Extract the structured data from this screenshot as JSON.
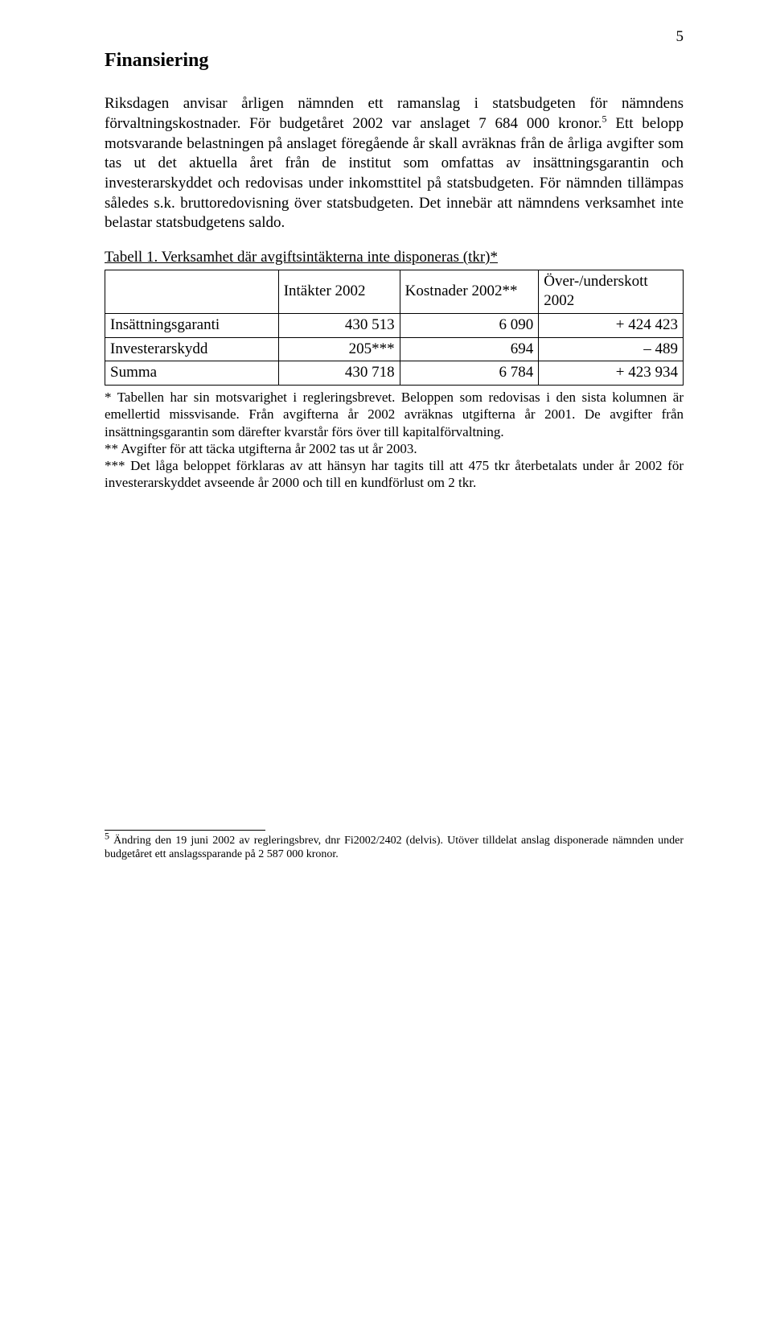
{
  "page_number": "5",
  "section_title": "Finansiering",
  "paragraph1_a": "Riksdagen anvisar årligen nämnden ett ramanslag i statsbudgeten för nämndens förvaltningskostnader. För budgetåret 2002 var anslaget 7 684 000 kronor.",
  "paragraph1_fn": "5",
  "paragraph1_b": " Ett belopp motsvarande belastningen på anslaget föregående år skall avräknas från de årliga avgifter som tas ut det aktuella året från de institut som omfattas av insättningsgarantin och investerarskyddet och redovisas under inkomsttitel på statsbudgeten. För nämnden tillämpas således s.k. bruttoredovisning över statsbudgeten. Det innebär att nämndens verksamhet inte belastar statsbudgetens saldo.",
  "table": {
    "caption": "Tabell 1. Verksamhet där avgiftsintäkterna inte disponeras (tkr)*",
    "columns": [
      "",
      "Intäkter 2002",
      "Kostnader 2002**",
      "Över-/underskott 2002"
    ],
    "rows": [
      [
        "Insättningsgaranti",
        "430 513",
        "6 090",
        "+ 424 423"
      ],
      [
        "Investerarskydd",
        "205***",
        "694",
        "– 489"
      ],
      [
        "Summa",
        "430 718",
        "6 784",
        "+ 423 934"
      ]
    ],
    "col_widths": [
      "30%",
      "21%",
      "24%",
      "25%"
    ]
  },
  "notes": {
    "n1": "* Tabellen har sin motsvarighet i regleringsbrevet. Beloppen som redovisas i den sista kolumnen är emellertid missvisande. Från avgifterna år 2002 avräknas utgifterna år 2001. De avgifter från insättningsgarantin som därefter kvarstår förs över till kapitalförvaltning.",
    "n2": "** Avgifter för att täcka utgifterna år 2002 tas ut år 2003.",
    "n3": "*** Det låga beloppet förklaras av att hänsyn har tagits till att 475 tkr återbetalats under år 2002 för investerarskyddet avseende år 2000 och till en kundförlust om 2 tkr."
  },
  "footnote": {
    "marker": "5",
    "text": " Ändring den 19 juni 2002 av regleringsbrev, dnr Fi2002/2402 (delvis). Utöver tilldelat anslag disponerade nämnden under budgetåret ett anslagssparande på 2 587 000 kronor."
  }
}
